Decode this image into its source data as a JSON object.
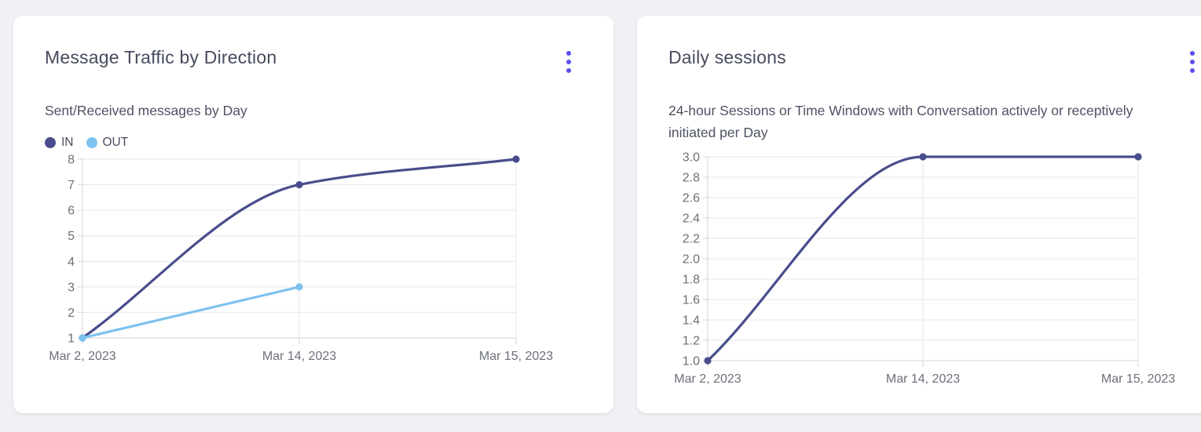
{
  "page": {
    "background_color": "#f0f1f4",
    "accent_color": "#5a4fee"
  },
  "cards": [
    {
      "title": "Message Traffic by Direction",
      "subtitle": "Sent/Received messages by Day",
      "menu_icon": "kebab-menu-icon",
      "legend": [
        {
          "label": "IN",
          "color": "#484d8b"
        },
        {
          "label": "OUT",
          "color": "#7ec2ef"
        }
      ],
      "chart_data": {
        "type": "line",
        "categories": [
          "Mar 2, 2023",
          "Mar 14, 2023",
          "Mar 15, 2023"
        ],
        "series": [
          {
            "name": "IN",
            "color": "#484d8b",
            "values": [
              1,
              7,
              8
            ]
          },
          {
            "name": "OUT",
            "color": "#7ec2ef",
            "values": [
              1,
              3,
              null
            ]
          }
        ],
        "yticks": [
          1,
          2,
          3,
          4,
          5,
          6,
          7,
          8
        ],
        "ytick_decimals": 0,
        "ylim": [
          1,
          8
        ],
        "grid": true,
        "curve": "monotone",
        "legend_position": "top-left"
      }
    },
    {
      "title": "Daily sessions",
      "subtitle": "24-hour Sessions or Time Windows with Conversation actively or receptively initiated per Day",
      "menu_icon": "kebab-menu-icon",
      "legend": [],
      "chart_data": {
        "type": "line",
        "categories": [
          "Mar 2, 2023",
          "Mar 14, 2023",
          "Mar 15, 2023"
        ],
        "series": [
          {
            "name": "Daily sessions",
            "color": "#484d8b",
            "values": [
              1,
              3,
              3
            ]
          }
        ],
        "yticks": [
          1.0,
          1.2,
          1.4,
          1.6,
          1.8,
          2.0,
          2.2,
          2.4,
          2.6,
          2.8,
          3.0
        ],
        "ytick_decimals": 1,
        "ylim": [
          1,
          3
        ],
        "grid": true,
        "curve": "monotone",
        "legend_position": "none"
      }
    }
  ],
  "chart_style": {
    "grid_color": "#e6e7ea",
    "axis_color": "#d4d5d9",
    "tick_label_color": "#6c7079"
  }
}
